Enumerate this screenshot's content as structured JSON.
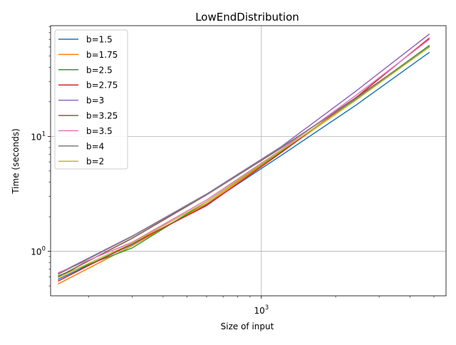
{
  "chart_data": {
    "type": "line",
    "title": "LowEndDistribution",
    "xlabel": "Size of input",
    "ylabel": "Time (seconds)",
    "xscale": "log",
    "yscale": "log",
    "xlim": [
      140,
      5600
    ],
    "ylim": [
      0.41,
      92
    ],
    "grid": "major",
    "legend_position": "upper-left",
    "x_major_ticks": [
      {
        "value": 1000,
        "base": "10",
        "exp": "3"
      }
    ],
    "y_major_ticks": [
      {
        "value": 1,
        "base": "10",
        "exp": "0"
      },
      {
        "value": 10,
        "base": "10",
        "exp": "1"
      }
    ],
    "x": [
      150,
      300,
      600,
      1200,
      2400,
      4800
    ],
    "series": [
      {
        "name": "b=1.5",
        "color": "#1f77b4",
        "values": [
          0.57,
          1.15,
          2.55,
          6.8,
          18.5,
          54
        ]
      },
      {
        "name": "b=1.75",
        "color": "#ff7f0e",
        "values": [
          0.52,
          1.12,
          2.6,
          7.3,
          20.5,
          61
        ]
      },
      {
        "name": "b=2.5",
        "color": "#2ca02c",
        "values": [
          0.61,
          1.07,
          2.7,
          7.4,
          21,
          62
        ]
      },
      {
        "name": "b=2.75",
        "color": "#d62728",
        "values": [
          0.55,
          1.17,
          2.5,
          7.2,
          21.5,
          72
        ]
      },
      {
        "name": "b=3",
        "color": "#9467bd",
        "values": [
          0.64,
          1.36,
          3.15,
          8.1,
          24.5,
          78
        ]
      },
      {
        "name": "b=3.25",
        "color": "#8c564b",
        "values": [
          0.6,
          1.3,
          3.1,
          7.9,
          21.5,
          60
        ]
      },
      {
        "name": "b=3.5",
        "color": "#e377c2",
        "values": [
          0.65,
          1.2,
          2.8,
          7.6,
          22.5,
          70
        ]
      },
      {
        "name": "b=4",
        "color": "#7f7f7f",
        "values": [
          0.63,
          1.35,
          3.12,
          8.0,
          21,
          61
        ]
      },
      {
        "name": "b=2",
        "color": "#bcbd22",
        "values": [
          0.59,
          1.18,
          2.7,
          7.5,
          20.5,
          60
        ]
      }
    ]
  }
}
